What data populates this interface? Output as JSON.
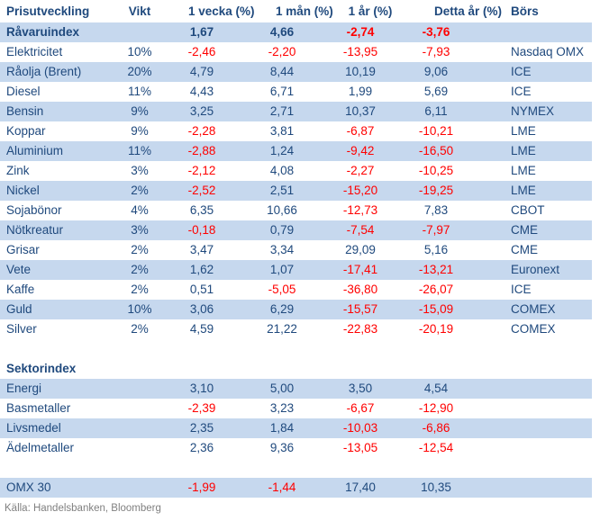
{
  "colors": {
    "text_navy": "#1F497D",
    "row_blue": "#C6D8EE",
    "negative_red": "#FF0000",
    "source_gray": "#808080",
    "background": "#FFFFFF"
  },
  "table": {
    "headers": {
      "label": "Prisutveckling",
      "vikt": "Vikt",
      "w1": "1 vecka (%)",
      "m1": "1 mån (%)",
      "y1": "1 år (%)",
      "ytd": "Detta år (%)",
      "bors": "Börs"
    },
    "sections": [
      {
        "type": "rows",
        "rows": [
          {
            "label": "Råvaruindex",
            "vikt": "",
            "w1": "1,67",
            "m1": "4,66",
            "y1": "-2,74",
            "ytd": "-3,76",
            "bors": "",
            "bold": true,
            "shade": true
          },
          {
            "label": "Elektricitet",
            "vikt": "10%",
            "w1": "-2,46",
            "m1": "-2,20",
            "y1": "-13,95",
            "ytd": "-7,93",
            "bors": "Nasdaq OMX",
            "bold": false,
            "shade": false
          },
          {
            "label": "Råolja (Brent)",
            "vikt": "20%",
            "w1": "4,79",
            "m1": "8,44",
            "y1": "10,19",
            "ytd": "9,06",
            "bors": "ICE",
            "bold": false,
            "shade": true
          },
          {
            "label": "Diesel",
            "vikt": "11%",
            "w1": "4,43",
            "m1": "6,71",
            "y1": "1,99",
            "ytd": "5,69",
            "bors": "ICE",
            "bold": false,
            "shade": false
          },
          {
            "label": "Bensin",
            "vikt": "9%",
            "w1": "3,25",
            "m1": "2,71",
            "y1": "10,37",
            "ytd": "6,11",
            "bors": "NYMEX",
            "bold": false,
            "shade": true
          },
          {
            "label": "Koppar",
            "vikt": "9%",
            "w1": "-2,28",
            "m1": "3,81",
            "y1": "-6,87",
            "ytd": "-10,21",
            "bors": "LME",
            "bold": false,
            "shade": false
          },
          {
            "label": "Aluminium",
            "vikt": "11%",
            "w1": "-2,88",
            "m1": "1,24",
            "y1": "-9,42",
            "ytd": "-16,50",
            "bors": "LME",
            "bold": false,
            "shade": true
          },
          {
            "label": "Zink",
            "vikt": "3%",
            "w1": "-2,12",
            "m1": "4,08",
            "y1": "-2,27",
            "ytd": "-10,25",
            "bors": "LME",
            "bold": false,
            "shade": false
          },
          {
            "label": "Nickel",
            "vikt": "2%",
            "w1": "-2,52",
            "m1": "2,51",
            "y1": "-15,20",
            "ytd": "-19,25",
            "bors": "LME",
            "bold": false,
            "shade": true
          },
          {
            "label": "Sojabönor",
            "vikt": "4%",
            "w1": "6,35",
            "m1": "10,66",
            "y1": "-12,73",
            "ytd": "7,83",
            "bors": "CBOT",
            "bold": false,
            "shade": false
          },
          {
            "label": "Nötkreatur",
            "vikt": "3%",
            "w1": "-0,18",
            "m1": "0,79",
            "y1": "-7,54",
            "ytd": "-7,97",
            "bors": "CME",
            "bold": false,
            "shade": true
          },
          {
            "label": "Grisar",
            "vikt": "2%",
            "w1": "3,47",
            "m1": "3,34",
            "y1": "29,09",
            "ytd": "5,16",
            "bors": "CME",
            "bold": false,
            "shade": false
          },
          {
            "label": "Vete",
            "vikt": "2%",
            "w1": "1,62",
            "m1": "1,07",
            "y1": "-17,41",
            "ytd": "-13,21",
            "bors": "Euronext",
            "bold": false,
            "shade": true
          },
          {
            "label": "Kaffe",
            "vikt": "2%",
            "w1": "0,51",
            "m1": "-5,05",
            "y1": "-36,80",
            "ytd": "-26,07",
            "bors": "ICE",
            "bold": false,
            "shade": false
          },
          {
            "label": "Guld",
            "vikt": "10%",
            "w1": "3,06",
            "m1": "6,29",
            "y1": "-15,57",
            "ytd": "-15,09",
            "bors": "COMEX",
            "bold": false,
            "shade": true
          },
          {
            "label": "Silver",
            "vikt": "2%",
            "w1": "4,59",
            "m1": "21,22",
            "y1": "-22,83",
            "ytd": "-20,19",
            "bors": "COMEX",
            "bold": false,
            "shade": false
          }
        ]
      },
      {
        "type": "spacer"
      },
      {
        "type": "label",
        "text": "Sektorindex"
      },
      {
        "type": "rows",
        "rows": [
          {
            "label": "Energi",
            "vikt": "",
            "w1": "3,10",
            "m1": "5,00",
            "y1": "3,50",
            "ytd": "4,54",
            "bors": "",
            "bold": false,
            "shade": true
          },
          {
            "label": "Basmetaller",
            "vikt": "",
            "w1": "-2,39",
            "m1": "3,23",
            "y1": "-6,67",
            "ytd": "-12,90",
            "bors": "",
            "bold": false,
            "shade": false
          },
          {
            "label": "Livsmedel",
            "vikt": "",
            "w1": "2,35",
            "m1": "1,84",
            "y1": "-10,03",
            "ytd": "-6,86",
            "bors": "",
            "bold": false,
            "shade": true
          },
          {
            "label": "Ädelmetaller",
            "vikt": "",
            "w1": "2,36",
            "m1": "9,36",
            "y1": "-13,05",
            "ytd": "-12,54",
            "bors": "",
            "bold": false,
            "shade": false
          }
        ]
      },
      {
        "type": "spacer"
      },
      {
        "type": "rows",
        "rows": [
          {
            "label": "OMX 30",
            "vikt": "",
            "w1": "-1,99",
            "m1": "-1,44",
            "y1": "17,40",
            "ytd": "10,35",
            "bors": "",
            "bold": false,
            "shade": true
          }
        ]
      }
    ]
  },
  "footer": {
    "source": "Källa: Handelsbanken, Bloomberg"
  }
}
